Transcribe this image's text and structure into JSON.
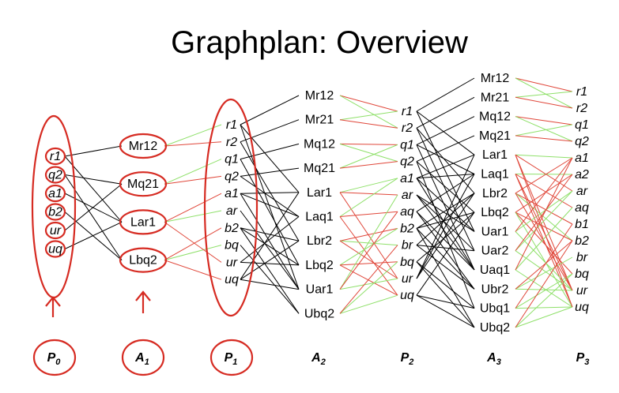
{
  "title": "Graphplan: Overview",
  "colors": {
    "mutex": "#e0473a",
    "support": "#8fe06a",
    "edge": "#000000",
    "annotation": "#d62b22"
  },
  "levels": {
    "P0": {
      "base": "P",
      "sub": "0"
    },
    "A1": {
      "base": "A",
      "sub": "1"
    },
    "P1": {
      "base": "P",
      "sub": "1"
    },
    "A2": {
      "base": "A",
      "sub": "2"
    },
    "P2": {
      "base": "P",
      "sub": "2"
    },
    "A3": {
      "base": "A",
      "sub": "3"
    },
    "P3": {
      "base": "P",
      "sub": "3"
    }
  },
  "columns": {
    "P0": [
      "r1",
      "q2",
      "a1",
      "b2",
      "ur",
      "uq"
    ],
    "A1": [
      "Mr12",
      "Mq21",
      "Lar1",
      "Lbq2"
    ],
    "P1": [
      "r1",
      "r2",
      "q1",
      "q2",
      "a1",
      "ar",
      "b2",
      "bq",
      "ur",
      "uq"
    ],
    "A2": [
      "Mr12",
      "Mr21",
      "Mq12",
      "Mq21",
      "Lar1",
      "Laq1",
      "Lbr2",
      "Lbq2",
      "Uar1",
      "Ubq2"
    ],
    "P2": [
      "r1",
      "r2",
      "q1",
      "q2",
      "a1",
      "ar",
      "aq",
      "b2",
      "br",
      "bq",
      "ur",
      "uq"
    ],
    "A3": [
      "Mr12",
      "Mr21",
      "Mq12",
      "Mq21",
      "Lar1",
      "Laq1",
      "Lbr2",
      "Lbq2",
      "Uar1",
      "Uar2",
      "Uaq1",
      "Ubr2",
      "Ubq1",
      "Ubq2"
    ],
    "P3": [
      "r1",
      "r2",
      "q1",
      "q2",
      "a1",
      "a2",
      "ar",
      "aq",
      "b1",
      "b2",
      "br",
      "bq",
      "ur",
      "uq"
    ]
  }
}
